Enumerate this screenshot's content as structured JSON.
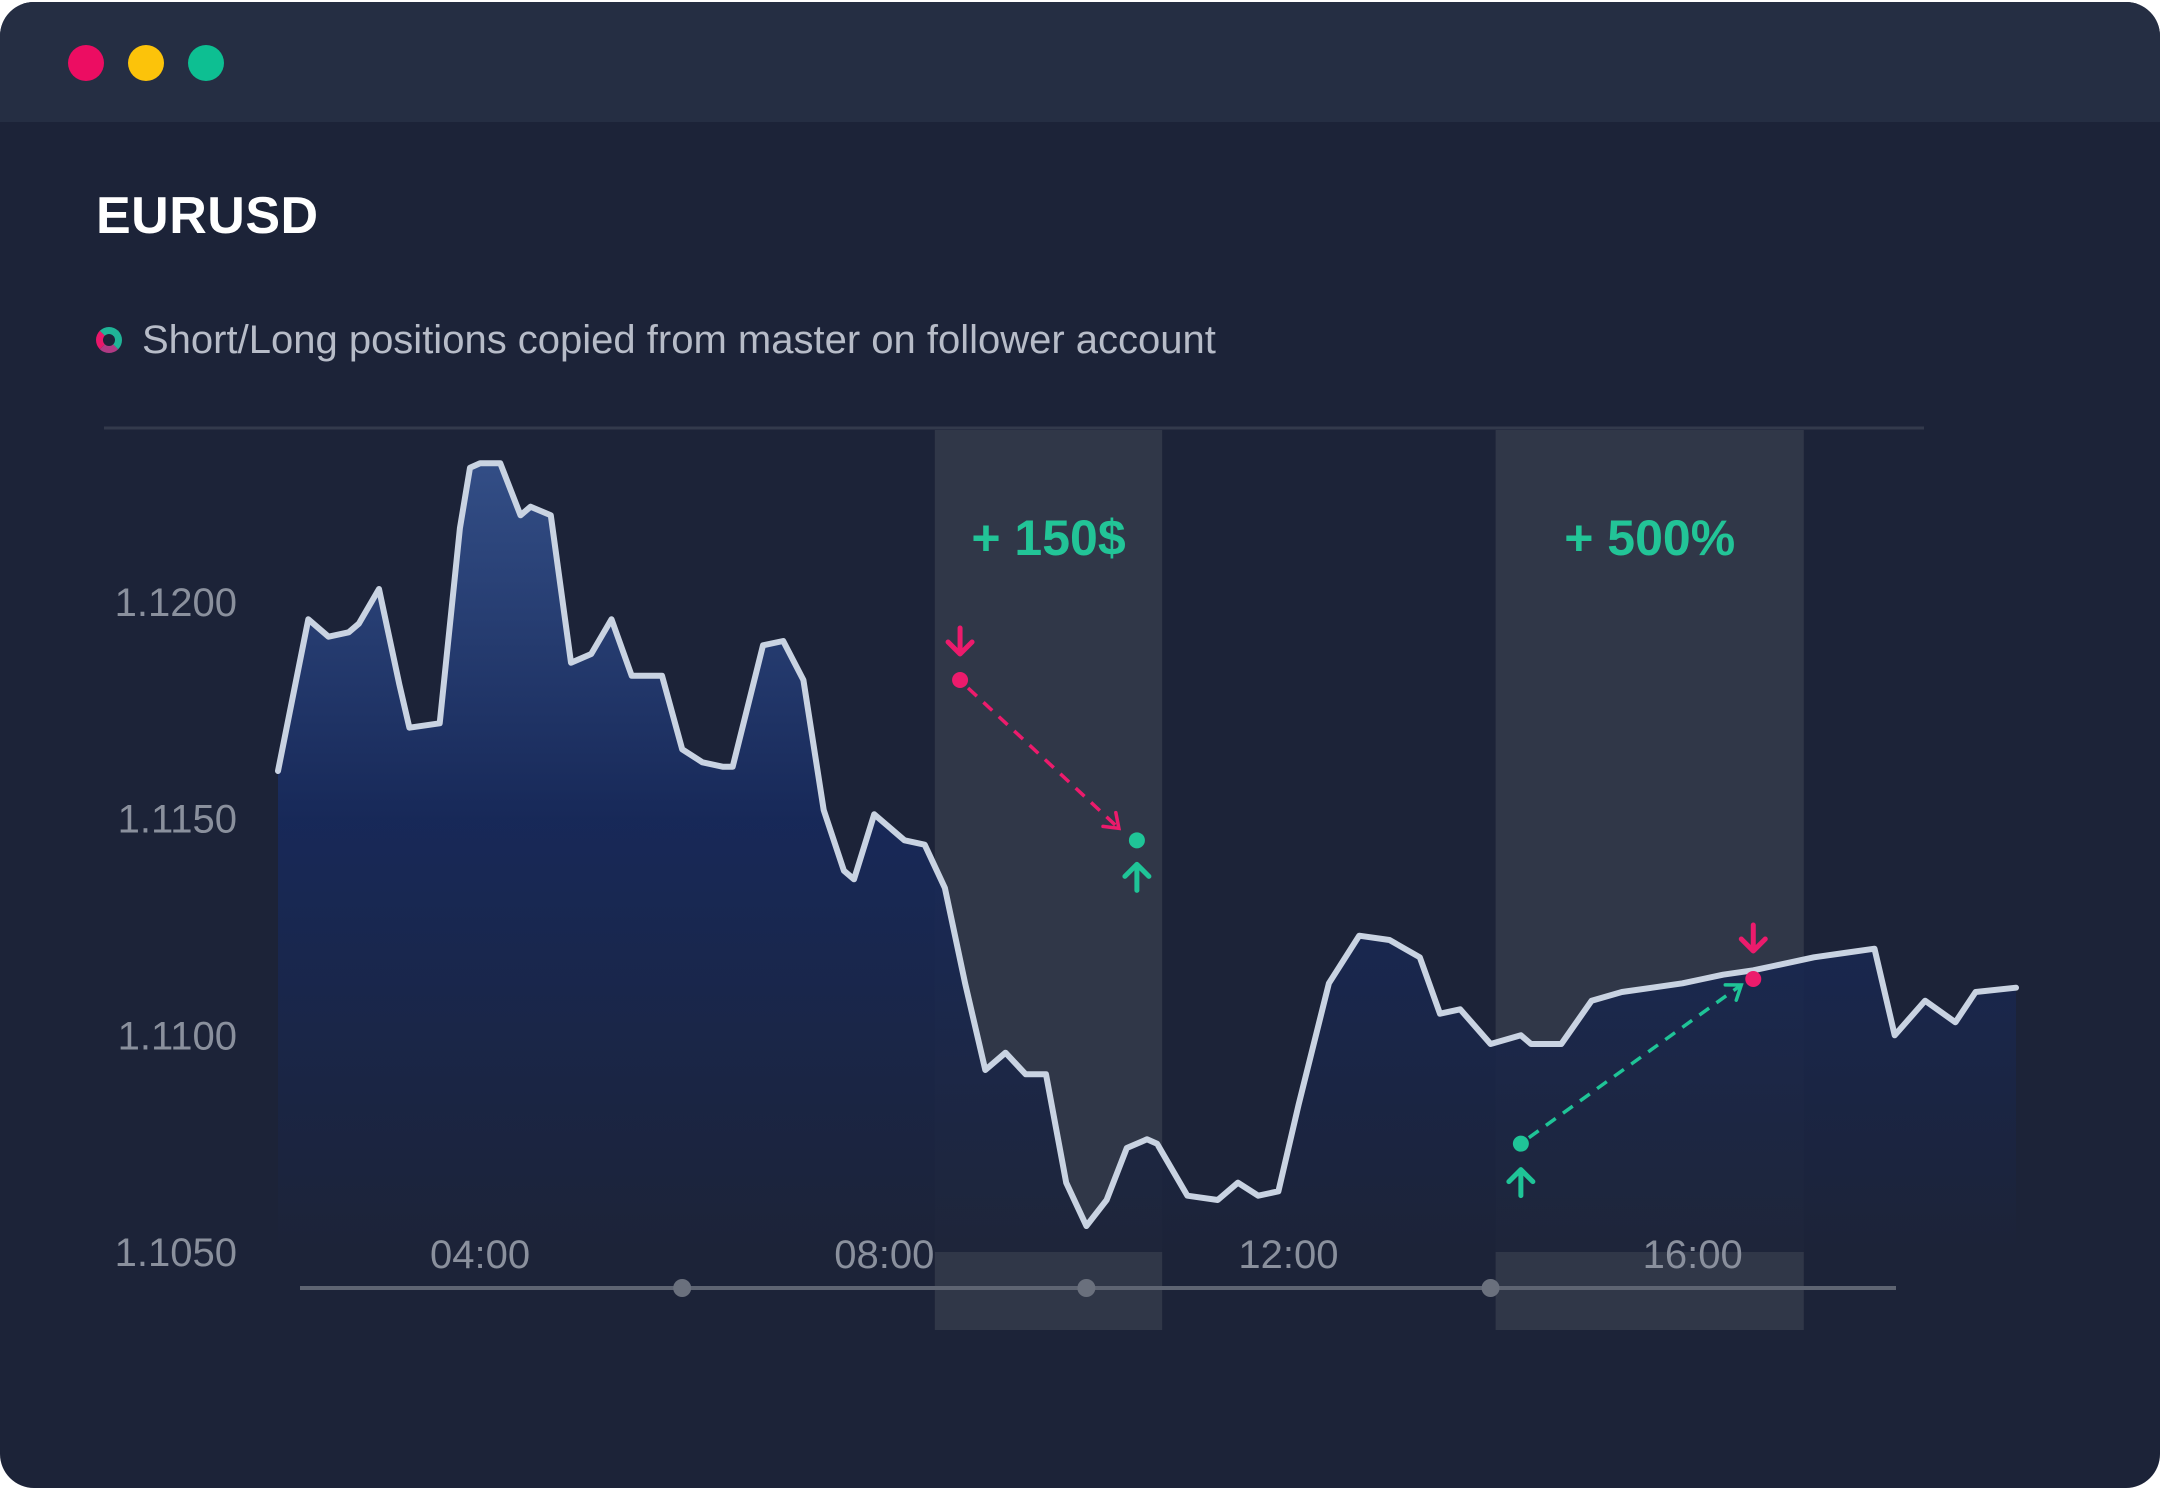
{
  "window": {
    "controls": [
      {
        "name": "close",
        "color": "#ec0d62"
      },
      {
        "name": "minimize",
        "color": "#fcc30a"
      },
      {
        "name": "maximize",
        "color": "#0dbf92"
      }
    ]
  },
  "symbol": "EURUSD",
  "legend": {
    "text": "Short/Long positions copied from master on follower account",
    "icon": "ring-icon"
  },
  "colors": {
    "background": "#1c2338",
    "line": "#c9d3e2",
    "area_top": "#34508a",
    "area_bottom": "#141f3e",
    "short": "#ec1b6c",
    "long": "#1fc497",
    "highlight_band": "#303748"
  },
  "chart_data": {
    "type": "area",
    "title": "EURUSD",
    "xlabel": "",
    "ylabel": "",
    "y_ticks": [
      "1.1050",
      "1.1100",
      "1.1150",
      "1.1200"
    ],
    "ylim": [
      1.105,
      1.125
    ],
    "x_tick_labels": [
      "04:00",
      "08:00",
      "12:00",
      "16:00"
    ],
    "x_tick_values": [
      4,
      8,
      12,
      16
    ],
    "xlim": [
      2.0,
      19.2
    ],
    "grid": false,
    "series": [
      {
        "x": [
          2.0,
          2.3,
          2.5,
          2.7,
          2.8,
          3.0,
          3.2,
          3.3,
          3.6,
          3.8,
          3.9,
          4.0,
          4.2,
          4.4,
          4.5,
          4.7,
          4.9,
          5.1,
          5.2,
          5.3,
          5.5,
          5.7,
          5.8,
          6.0,
          6.2,
          6.4,
          6.5,
          6.8,
          7.0,
          7.2,
          7.4,
          7.6,
          7.7,
          7.9,
          8.2,
          8.4,
          8.6,
          8.8,
          9.0,
          9.2,
          9.4,
          9.6,
          9.8,
          10.0,
          10.2,
          10.4,
          10.6,
          10.7,
          11.0,
          11.3,
          11.5,
          11.7,
          11.9,
          12.1,
          12.4,
          12.7,
          13.0,
          13.3,
          13.5,
          13.7,
          14.0,
          14.3,
          14.4,
          14.7,
          15.0,
          15.3,
          15.6,
          15.9,
          16.1,
          16.3,
          16.6,
          16.8,
          17.0,
          17.2,
          17.5,
          17.8,
          18.0,
          18.3,
          18.6,
          18.8,
          19.2
        ],
        "values": [
          1.1161,
          1.1196,
          1.1192,
          1.1193,
          1.1195,
          1.1203,
          1.1181,
          1.1171,
          1.1172,
          1.1217,
          1.1231,
          1.1232,
          1.1232,
          1.122,
          1.1222,
          1.122,
          1.1186,
          1.1188,
          1.1192,
          1.1196,
          1.1183,
          1.1183,
          1.1183,
          1.1166,
          1.1163,
          1.1162,
          1.1162,
          1.119,
          1.1191,
          1.1182,
          1.1152,
          1.1138,
          1.1136,
          1.1151,
          1.1145,
          1.1144,
          1.1134,
          1.1112,
          1.1092,
          1.1096,
          1.1091,
          1.1091,
          1.1066,
          1.1056,
          1.1062,
          1.1074,
          1.1076,
          1.1075,
          1.1063,
          1.1062,
          1.1066,
          1.1063,
          1.1064,
          1.1084,
          1.1112,
          1.1123,
          1.1122,
          1.1118,
          1.1105,
          1.1106,
          1.1098,
          1.11,
          1.1098,
          1.1098,
          1.1108,
          1.111,
          1.1111,
          1.1112,
          1.1113,
          1.1114,
          1.1115,
          1.1116,
          1.1117,
          1.1118,
          1.1119,
          1.112,
          1.11,
          1.1108,
          1.1103,
          1.111,
          1.1111
        ]
      }
    ],
    "highlight_bands": [
      {
        "from": 8.5,
        "to": 10.75,
        "label": "+ 150$"
      },
      {
        "from": 14.05,
        "to": 17.1,
        "label": "+ 500%"
      }
    ],
    "trades": [
      {
        "side": "short",
        "entry": {
          "x": 8.75,
          "y": 1.1182
        },
        "exit": {
          "x": 10.5,
          "y": 1.1145
        }
      },
      {
        "side": "long",
        "entry": {
          "x": 14.3,
          "y": 1.1075
        },
        "exit": {
          "x": 16.6,
          "y": 1.1113
        }
      }
    ],
    "timeline_markers": [
      6.0,
      10.0,
      14.0
    ]
  }
}
